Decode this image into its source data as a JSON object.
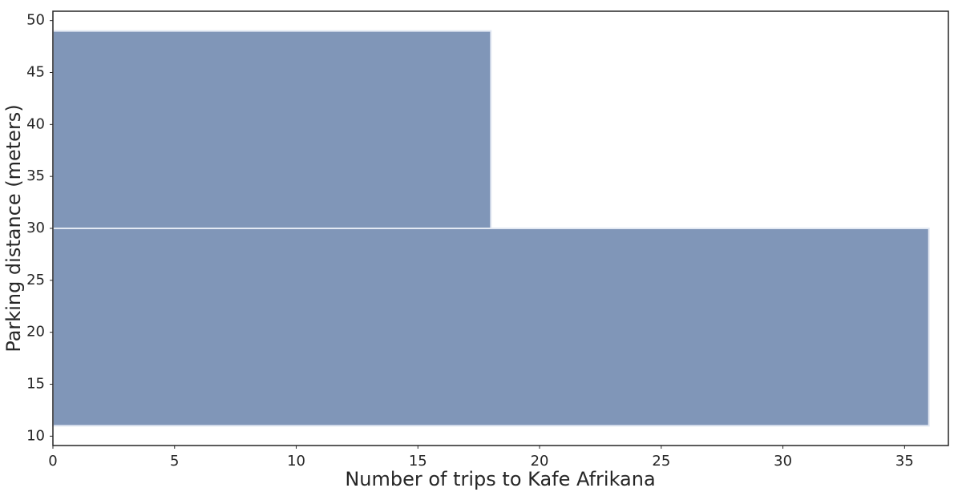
{
  "chart_data": {
    "type": "histogram",
    "orientation": "horizontal",
    "bins": [
      11,
      30,
      49
    ],
    "values": [
      36,
      18
    ],
    "color": "#8096b8",
    "edgecolor": "#e3e9f3",
    "xlabel": "Number of trips to Kafe Afrikana",
    "ylabel": "Parking distance (meters)",
    "xlim": [
      0,
      36.8
    ],
    "ylim": [
      9.1,
      50.9
    ],
    "xticks": [
      0,
      5,
      10,
      15,
      20,
      25,
      30,
      35
    ],
    "yticks": [
      10,
      15,
      20,
      25,
      30,
      35,
      40,
      45,
      50
    ]
  }
}
